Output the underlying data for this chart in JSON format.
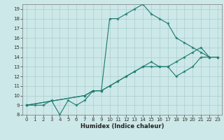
{
  "xlabel": "Humidex (Indice chaleur)",
  "line1_x": [
    0,
    1,
    2,
    3,
    4,
    5,
    6,
    7,
    8,
    9,
    10,
    11,
    12,
    13,
    14,
    15,
    16,
    17,
    18,
    19,
    20,
    21,
    22,
    23
  ],
  "line1_y": [
    9,
    9,
    9,
    9.5,
    8,
    9.5,
    9,
    9.5,
    10.5,
    10.5,
    18,
    18,
    18.5,
    19,
    19.5,
    18.5,
    18,
    17.5,
    16,
    15.5,
    15,
    14.5,
    14,
    14
  ],
  "line2_x": [
    0,
    7,
    8,
    9,
    10,
    11,
    12,
    13,
    14,
    15,
    16,
    17,
    18,
    19,
    20,
    21,
    22,
    23
  ],
  "line2_y": [
    9,
    10,
    10.5,
    10.5,
    11,
    11.5,
    12,
    12.5,
    13,
    13,
    13,
    13,
    13.5,
    14,
    14.5,
    15,
    14,
    14
  ],
  "line3_x": [
    0,
    7,
    8,
    9,
    10,
    11,
    12,
    13,
    14,
    15,
    16,
    17,
    18,
    19,
    20,
    21,
    22,
    23
  ],
  "line3_y": [
    9,
    10,
    10.5,
    10.5,
    11,
    11.5,
    12,
    12.5,
    13,
    13.5,
    13,
    13,
    12,
    12.5,
    13,
    14,
    14,
    14
  ],
  "line_color": "#1a7a6e",
  "bg_color": "#cde8e8",
  "grid_color": "#aacece",
  "xlim": [
    -0.5,
    23.5
  ],
  "ylim": [
    8,
    19.5
  ],
  "xticks": [
    0,
    1,
    2,
    3,
    4,
    5,
    6,
    7,
    8,
    9,
    10,
    11,
    12,
    13,
    14,
    15,
    16,
    17,
    18,
    19,
    20,
    21,
    22,
    23
  ],
  "yticks": [
    8,
    9,
    10,
    11,
    12,
    13,
    14,
    15,
    16,
    17,
    18,
    19
  ],
  "xlabel_fontsize": 6.0,
  "tick_fontsize": 5.0
}
